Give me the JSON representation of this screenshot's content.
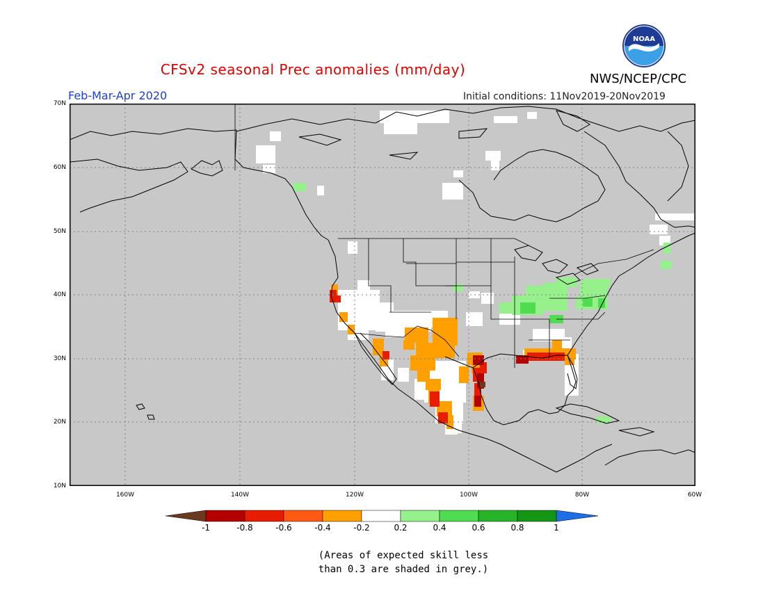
{
  "header": {
    "title": "CFSv2 seasonal Prec anomalies (mm/day)",
    "period": "Feb-Mar-Apr 2020",
    "initial_conditions": "Initial conditions: 11Nov2019-20Nov2019",
    "agency": "NWS/NCEP/CPC",
    "logo_text": "NOAA"
  },
  "map": {
    "lat_labels": [
      "70N",
      "60N",
      "50N",
      "40N",
      "30N",
      "20N",
      "10N"
    ],
    "lon_labels": [
      "160W",
      "140W",
      "120W",
      "100W",
      "80W",
      "60W"
    ],
    "colors": {
      "ocean": "#c8c8c8",
      "frame": "#000000",
      "coast": "#000000",
      "grid": "#808080",
      "low_skill": "#c8c8c8"
    }
  },
  "colorbar": {
    "labels": [
      "-1",
      "-0.8",
      "-0.6",
      "-0.4",
      "-0.2",
      "0.2",
      "0.4",
      "0.6",
      "0.8",
      "1"
    ],
    "colors": [
      "#6b3a1e",
      "#b40000",
      "#e81c00",
      "#ff5a14",
      "#ffa000",
      "#ffffff",
      "#96f08c",
      "#50dc50",
      "#28b428",
      "#149614",
      "#1e6ee6"
    ]
  },
  "note": {
    "line1": "(Areas of expected skill less",
    "line2": "than 0.3 are shaded in grey.)"
  }
}
